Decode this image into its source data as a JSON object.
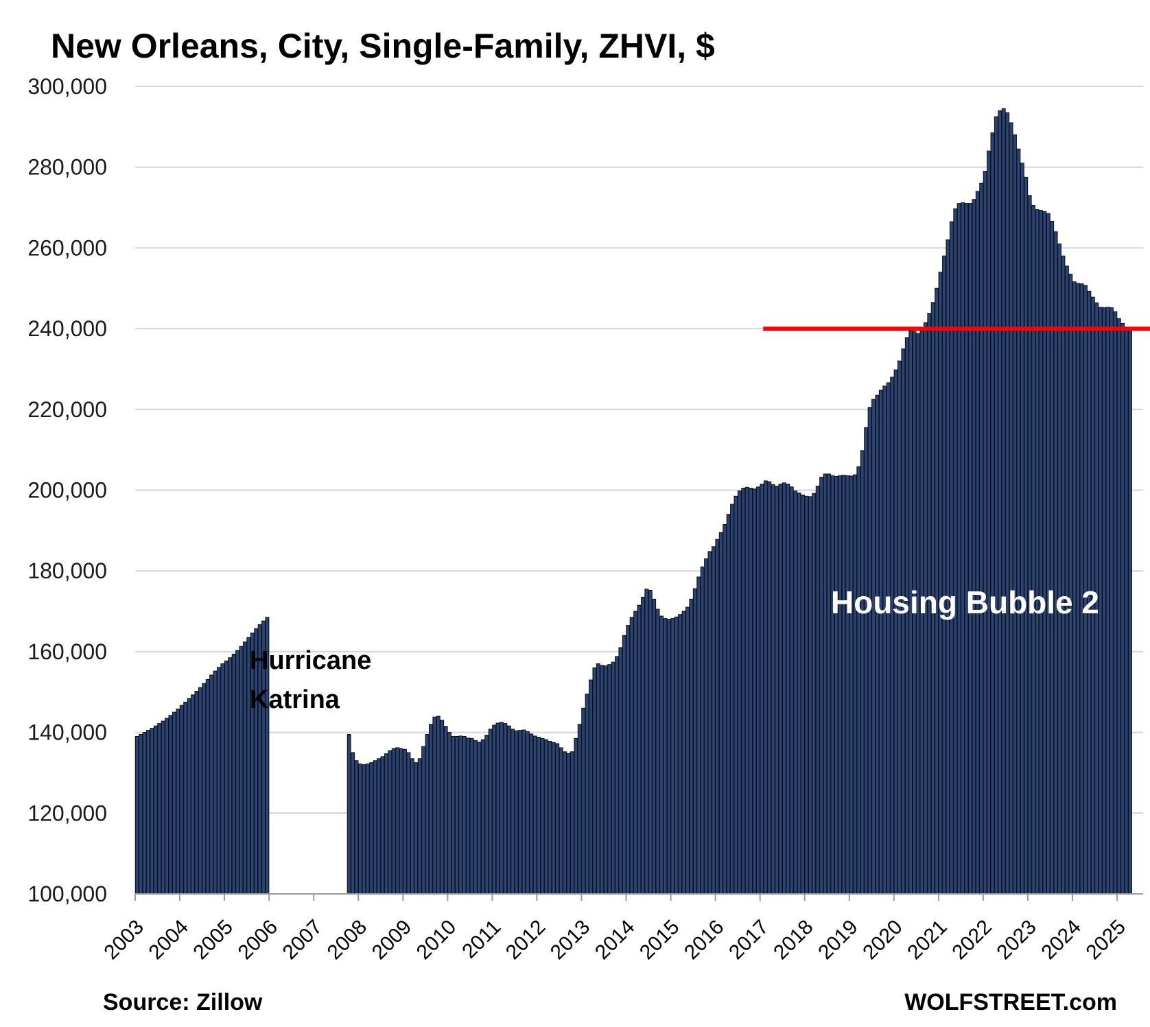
{
  "chart_data": {
    "type": "bar",
    "title": "New Orleans, City, Single-Family, ZHVI, $",
    "ylim": [
      100000,
      300000
    ],
    "y_ticks": [
      "100,000",
      "120,000",
      "140,000",
      "160,000",
      "180,000",
      "200,000",
      "220,000",
      "240,000",
      "260,000",
      "280,000",
      "300,000"
    ],
    "x_ticks": [
      "2003",
      "2004",
      "2005",
      "2006",
      "2007",
      "2008",
      "2009",
      "2010",
      "2011",
      "2012",
      "2013",
      "2014",
      "2015",
      "2016",
      "2017",
      "2018",
      "2019",
      "2020",
      "2021",
      "2022",
      "2023",
      "2024",
      "2025"
    ],
    "grid": true,
    "frequency": "monthly",
    "start": "2003-01",
    "series": [
      {
        "values": [
          139000,
          139500,
          140000,
          140500,
          141000,
          141600,
          142200,
          142800,
          143500,
          144200,
          145000,
          145800,
          146700,
          147500,
          148400,
          149300,
          150200,
          151100,
          152100,
          153100,
          154200,
          155200,
          156100,
          157000,
          157700,
          158500,
          159400,
          160300,
          161300,
          162400,
          163500,
          164600,
          165700,
          166700,
          167600,
          168500,
          null,
          null,
          null,
          null,
          null,
          null,
          null,
          null,
          null,
          null,
          null,
          null,
          null,
          null,
          null,
          null,
          null,
          null,
          null,
          null,
          null,
          139500,
          135000,
          133000,
          132200,
          132000,
          132200,
          132500,
          133000,
          133500,
          134000,
          134700,
          135500,
          136000,
          136200,
          136000,
          135800,
          135000,
          133500,
          132500,
          133500,
          136500,
          139500,
          142000,
          143800,
          144000,
          143000,
          141500,
          140000,
          139000,
          139000,
          139100,
          139000,
          138600,
          138500,
          138000,
          137600,
          138200,
          139300,
          140800,
          141800,
          142300,
          142500,
          142200,
          141600,
          140800,
          140400,
          140500,
          140600,
          140200,
          139600,
          139100,
          138800,
          138500,
          138200,
          137800,
          137500,
          137200,
          136200,
          135200,
          134800,
          135200,
          138500,
          142000,
          146000,
          149500,
          153000,
          156000,
          157000,
          156600,
          156500,
          156800,
          157400,
          158800,
          161000,
          164000,
          166500,
          168500,
          170000,
          171500,
          173500,
          175500,
          175200,
          173000,
          170500,
          168800,
          168200,
          168000,
          168200,
          168600,
          169200,
          170000,
          171000,
          173000,
          175600,
          178500,
          181000,
          183000,
          184800,
          186000,
          187800,
          189500,
          191500,
          194000,
          196500,
          198500,
          199800,
          200500,
          200700,
          200500,
          200300,
          200800,
          201500,
          202300,
          202100,
          201400,
          201000,
          201500,
          201800,
          201500,
          200800,
          199800,
          199300,
          198800,
          198500,
          198400,
          199200,
          201000,
          203200,
          204000,
          204000,
          203600,
          203400,
          203600,
          203700,
          203600,
          203500,
          203800,
          205800,
          209800,
          215500,
          220500,
          222500,
          223500,
          224800,
          225800,
          226600,
          228000,
          229800,
          232000,
          235000,
          237800,
          239500,
          239300,
          238800,
          239700,
          241500,
          243800,
          246500,
          250000,
          254000,
          258000,
          262000,
          266500,
          269700,
          271000,
          271200,
          271000,
          271000,
          272000,
          274000,
          276000,
          279000,
          284000,
          288500,
          292500,
          294000,
          294500,
          293500,
          291000,
          288000,
          284500,
          281000,
          277500,
          273000,
          270500,
          269500,
          269300,
          269000,
          268500,
          266600,
          264000,
          261000,
          258000,
          255500,
          253500,
          251600,
          251200,
          251100,
          250700,
          249300,
          247800,
          246400,
          245300,
          245200,
          245300,
          245200,
          244200,
          242500,
          241300,
          240300,
          239800
        ]
      }
    ],
    "reference_line": {
      "value": 240000,
      "from": "2016-12",
      "color": "#ff0000"
    },
    "annotations": [
      {
        "text_lines": [
          "Hurricane",
          "Katrina"
        ],
        "color": "#000000"
      },
      {
        "text_lines": [
          "Housing Bubble 2"
        ],
        "color": "#ffffff"
      }
    ]
  },
  "colors": {
    "bar_fill": "#2e4470",
    "bar_stroke": "#0b1424",
    "grid": "#d4d4d4",
    "axis": "#9a9a9a",
    "reference": "#ff0000"
  },
  "footer": {
    "source": "Source: Zillow",
    "brand": "WOLFSTREET.com"
  }
}
